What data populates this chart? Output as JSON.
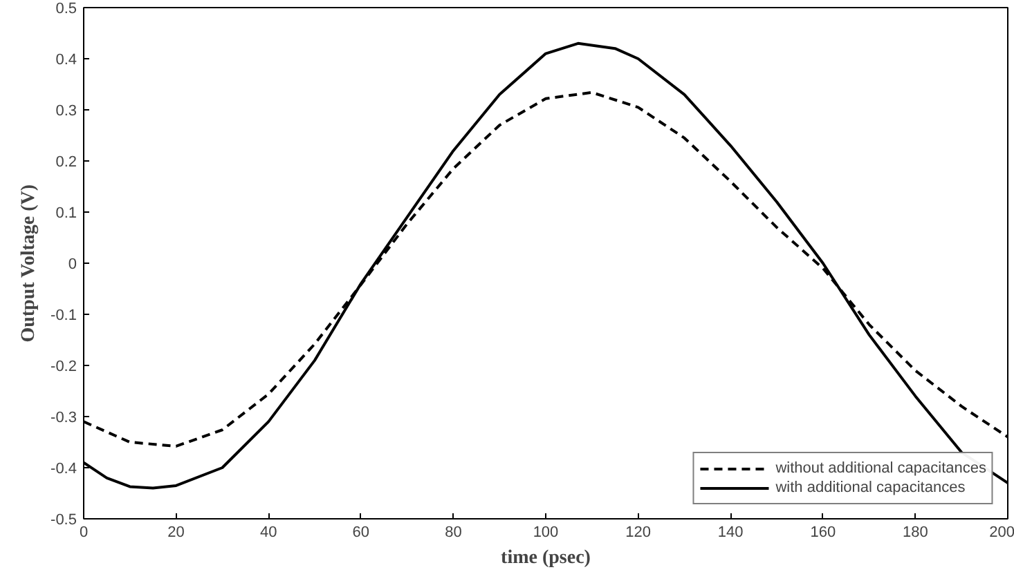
{
  "chart_data": {
    "type": "line",
    "xlabel": "time (psec)",
    "ylabel": "Output Voltage (V)",
    "xlim": [
      0,
      200
    ],
    "ylim": [
      -0.5,
      0.5
    ],
    "xticks": [
      0,
      20,
      40,
      60,
      80,
      100,
      120,
      140,
      160,
      180,
      200
    ],
    "yticks": [
      -0.5,
      -0.4,
      -0.3,
      -0.2,
      -0.1,
      0,
      0.1,
      0.2,
      0.3,
      0.4,
      0.5
    ],
    "grid": false,
    "legend": "bottom right",
    "series": [
      {
        "name": "without additional capacitances",
        "color": "#000000",
        "line_style": "dashed",
        "x": [
          0,
          10,
          20,
          30,
          40,
          50,
          60,
          70,
          80,
          90,
          100,
          110,
          120,
          130,
          140,
          150,
          160,
          170,
          180,
          190,
          200
        ],
        "values": [
          -0.31,
          -0.35,
          -0.358,
          -0.326,
          -0.256,
          -0.158,
          -0.042,
          0.077,
          0.185,
          0.27,
          0.322,
          0.334,
          0.305,
          0.245,
          0.16,
          0.07,
          -0.01,
          -0.12,
          -0.21,
          -0.28,
          -0.34
        ]
      },
      {
        "name": "with additional capacitances",
        "color": "#000000",
        "line_style": "solid",
        "x": [
          0,
          5,
          10,
          15,
          20,
          30,
          40,
          50,
          60,
          70,
          80,
          90,
          100,
          107,
          115,
          120,
          130,
          140,
          150,
          160,
          170,
          180,
          190,
          200
        ],
        "values": [
          -0.39,
          -0.42,
          -0.437,
          -0.44,
          -0.435,
          -0.4,
          -0.31,
          -0.19,
          -0.04,
          0.09,
          0.22,
          0.33,
          0.41,
          0.43,
          0.42,
          0.4,
          0.33,
          0.23,
          0.12,
          0.0,
          -0.14,
          -0.26,
          -0.37,
          -0.43
        ]
      }
    ]
  }
}
